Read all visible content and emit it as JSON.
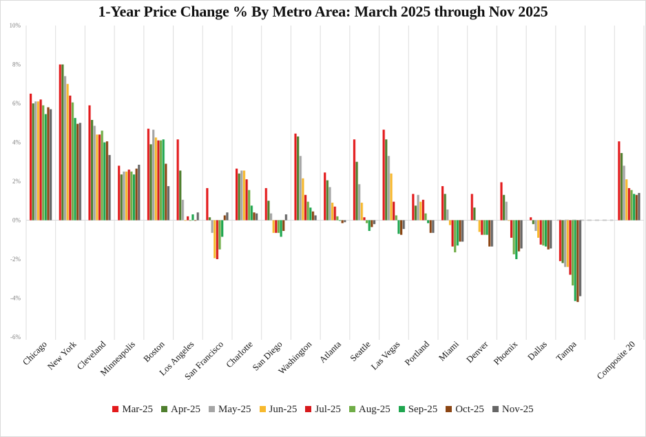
{
  "chart_data": {
    "type": "bar",
    "title": "1-Year Price Change % By Metro Area: March 2025 through Nov 2025",
    "xlabel": "",
    "ylabel": "",
    "ylim": [
      -6,
      10
    ],
    "yticks": [
      10,
      8,
      6,
      4,
      2,
      0,
      -2,
      -4,
      -6
    ],
    "ytick_labels": [
      "10%",
      "8%",
      "6%",
      "4%",
      "2%",
      "0%",
      "-2%",
      "-4%",
      "-6%"
    ],
    "grid": "vertical category separators",
    "legend_position": "bottom",
    "categories": [
      "Chicago",
      "New York",
      "Cleveland",
      "Minneapolis",
      "Boston",
      "Los Angeles",
      "San Francisco",
      "Charlotte",
      "San Diego",
      "Washington",
      "Atlanta",
      "Seattle",
      "Las Vegas",
      "Portland",
      "Miami",
      "Denver",
      "Phoenix",
      "Dallas",
      "Tampa",
      "",
      "Composite 20"
    ],
    "series": [
      {
        "name": "Mar-25",
        "color": "#e31a1c",
        "values": [
          6.5,
          8.0,
          5.9,
          2.8,
          4.7,
          4.15,
          1.65,
          2.65,
          1.65,
          4.45,
          2.45,
          4.15,
          4.65,
          1.35,
          1.75,
          1.35,
          1.95,
          0.15,
          -2.1,
          null,
          4.05
        ]
      },
      {
        "name": "Apr-25",
        "color": "#4f7f2e",
        "values": [
          6.0,
          8.0,
          5.15,
          2.35,
          3.9,
          2.55,
          0.15,
          2.4,
          1.0,
          4.3,
          2.05,
          3.0,
          4.15,
          0.75,
          1.35,
          0.65,
          1.3,
          -0.2,
          -2.2,
          null,
          3.45
        ]
      },
      {
        "name": "May-25",
        "color": "#a5a5a5",
        "values": [
          6.1,
          7.4,
          4.85,
          2.5,
          4.65,
          1.05,
          -0.65,
          2.55,
          0.35,
          3.3,
          1.7,
          1.85,
          3.3,
          1.3,
          0.55,
          0.0,
          0.95,
          -0.55,
          -2.4,
          null,
          2.8
        ]
      },
      {
        "name": "Jun-25",
        "color": "#f7b92e",
        "values": [
          6.1,
          7.0,
          4.4,
          2.5,
          4.25,
          0.0,
          -1.95,
          2.55,
          -0.65,
          2.15,
          0.9,
          0.9,
          2.4,
          0.95,
          -0.25,
          -0.6,
          0.0,
          -0.9,
          -2.4,
          null,
          2.1
        ]
      },
      {
        "name": "Jul-25",
        "color": "#d7191c",
        "values": [
          6.2,
          6.4,
          4.4,
          2.6,
          4.1,
          0.2,
          -2.0,
          2.1,
          -0.65,
          1.3,
          0.7,
          0.15,
          0.95,
          1.05,
          -1.35,
          -0.75,
          -0.9,
          -1.25,
          -2.8,
          null,
          1.65
        ]
      },
      {
        "name": "Aug-25",
        "color": "#70ad47",
        "values": [
          5.9,
          6.05,
          4.6,
          2.5,
          4.1,
          0.0,
          -1.5,
          1.55,
          -0.65,
          0.95,
          0.2,
          -0.15,
          0.25,
          0.35,
          -1.65,
          -0.75,
          -1.75,
          -1.3,
          -3.35,
          null,
          1.55
        ]
      },
      {
        "name": "Sep-25",
        "color": "#1fa64f",
        "values": [
          5.45,
          5.25,
          4.0,
          2.35,
          4.15,
          0.3,
          -0.85,
          0.75,
          -0.85,
          0.65,
          0.0,
          -0.55,
          -0.7,
          -0.15,
          -1.3,
          -0.75,
          -2.0,
          -1.35,
          -4.15,
          null,
          1.35
        ]
      },
      {
        "name": "Oct-25",
        "color": "#8b4513",
        "values": [
          5.8,
          4.95,
          4.05,
          2.65,
          2.9,
          0.0,
          0.25,
          0.4,
          -0.55,
          0.45,
          -0.15,
          -0.35,
          -0.75,
          -0.65,
          -1.1,
          -1.35,
          -1.6,
          -1.5,
          -4.2,
          null,
          1.3
        ]
      },
      {
        "name": "Nov-25",
        "color": "#666666",
        "values": [
          5.7,
          5.0,
          3.35,
          2.85,
          1.75,
          0.4,
          0.4,
          0.35,
          0.3,
          0.25,
          -0.1,
          -0.2,
          -0.45,
          -0.65,
          -1.1,
          -1.35,
          -1.45,
          -1.45,
          -3.9,
          null,
          1.4
        ]
      }
    ]
  }
}
